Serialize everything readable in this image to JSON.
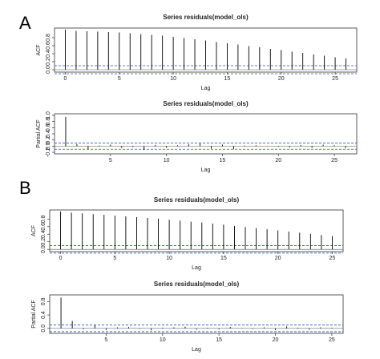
{
  "panel_labels": [
    "A",
    "B"
  ],
  "chart_data": [
    {
      "type": "acf",
      "title": "Series  residuals(model_ols)",
      "x_label": "Lag",
      "y_label": "ACF",
      "color": "#000000",
      "conf_color": "#3050c0",
      "x": [
        0,
        1,
        2,
        3,
        4,
        5,
        6,
        7,
        8,
        9,
        10,
        11,
        12,
        13,
        14,
        15,
        16,
        17,
        18,
        19,
        20,
        21,
        22,
        23,
        24,
        25,
        26
      ],
      "values": [
        1.0,
        0.97,
        0.96,
        0.95,
        0.94,
        0.93,
        0.91,
        0.89,
        0.87,
        0.85,
        0.82,
        0.79,
        0.76,
        0.73,
        0.69,
        0.66,
        0.63,
        0.59,
        0.56,
        0.52,
        0.49,
        0.45,
        0.42,
        0.38,
        0.35,
        0.31,
        0.28
      ],
      "conf_limit": 0.1,
      "xlim": [
        -1,
        27
      ],
      "ylim": [
        -0.06,
        1.04
      ],
      "xticks": [
        0,
        5,
        10,
        15,
        20,
        25
      ],
      "yticks": [
        {
          "value": 0,
          "label": "0.0"
        },
        0.2,
        0.4,
        0.6,
        0.8
      ]
    },
    {
      "type": "acf",
      "title": "Series  residuals(model_ols)",
      "x_label": "Lag",
      "y_label": "Partial ACF",
      "color": "#000000",
      "conf_color": "#3050c0",
      "x": [
        1,
        2,
        3,
        4,
        5,
        6,
        7,
        8,
        9,
        10,
        11,
        12,
        13,
        14,
        15,
        16,
        17,
        18,
        19,
        20,
        21,
        22,
        23,
        24,
        25,
        26
      ],
      "values": [
        0.95,
        0.07,
        -0.1,
        0.02,
        0.05,
        -0.06,
        -0.03,
        -0.12,
        0.04,
        -0.05,
        0.03,
        0.06,
        0.08,
        -0.08,
        0.05,
        -0.1,
        0.02,
        0.03,
        0.01,
        -0.02,
        -0.04,
        0.04,
        -0.05,
        0.05,
        0.03,
        -0.06
      ],
      "conf_limit": 0.1,
      "xlim": [
        0,
        27
      ],
      "ylim": [
        -0.25,
        1.05
      ],
      "xticks": [
        5,
        10,
        15,
        20,
        25
      ],
      "yticks": [
        -0.2,
        {
          "value": 0,
          "label": "0.0"
        },
        0.2,
        0.4,
        0.6,
        0.8,
        {
          "value": 1,
          "label": "1.0"
        }
      ]
    },
    {
      "type": "acf",
      "title": "Series  residuals(model_ols)",
      "x_label": "Lag",
      "y_label": "ACF",
      "color": "#000000",
      "conf_color": "#3050c0",
      "x": [
        0,
        1,
        2,
        3,
        4,
        5,
        6,
        7,
        8,
        9,
        10,
        11,
        12,
        13,
        14,
        15,
        16,
        17,
        18,
        19,
        20,
        21,
        22,
        23,
        24,
        25
      ],
      "values": [
        1.0,
        0.97,
        0.95,
        0.93,
        0.91,
        0.89,
        0.87,
        0.85,
        0.83,
        0.81,
        0.78,
        0.76,
        0.73,
        0.71,
        0.68,
        0.65,
        0.62,
        0.59,
        0.56,
        0.53,
        0.5,
        0.47,
        0.44,
        0.41,
        0.38,
        0.35
      ],
      "conf_limit": 0.1,
      "xlim": [
        -1,
        26
      ],
      "ylim": [
        -0.06,
        1.04
      ],
      "xticks": [
        0,
        5,
        10,
        15,
        20,
        25
      ],
      "yticks": [
        {
          "value": 0,
          "label": "0.0"
        },
        0.2,
        0.4,
        0.6,
        0.8
      ]
    },
    {
      "type": "acf",
      "title": "Series  residuals(model_ols)",
      "x_label": "Lag",
      "y_label": "Partial ACF",
      "color": "#000000",
      "conf_color": "#3050c0",
      "x": [
        1,
        2,
        3,
        4,
        5,
        6,
        7,
        8,
        9,
        10,
        11,
        12,
        13,
        14,
        15,
        16,
        17,
        18,
        19,
        20,
        21,
        22,
        23,
        24,
        25
      ],
      "values": [
        0.92,
        0.22,
        -0.03,
        0.1,
        -0.05,
        0.03,
        0.04,
        -0.02,
        -0.06,
        0.02,
        0.03,
        0.05,
        -0.04,
        0.02,
        -0.03,
        0.04,
        0.01,
        -0.02,
        0.03,
        -0.05,
        0.06,
        0.02,
        -0.04,
        0.03,
        0.02
      ],
      "conf_limit": 0.1,
      "xlim": [
        0,
        26
      ],
      "ylim": [
        -0.15,
        1.0
      ],
      "xticks": [
        5,
        10,
        15,
        20,
        25
      ],
      "yticks": [
        {
          "value": 0,
          "label": "0.0"
        },
        0.4,
        0.8
      ]
    }
  ]
}
